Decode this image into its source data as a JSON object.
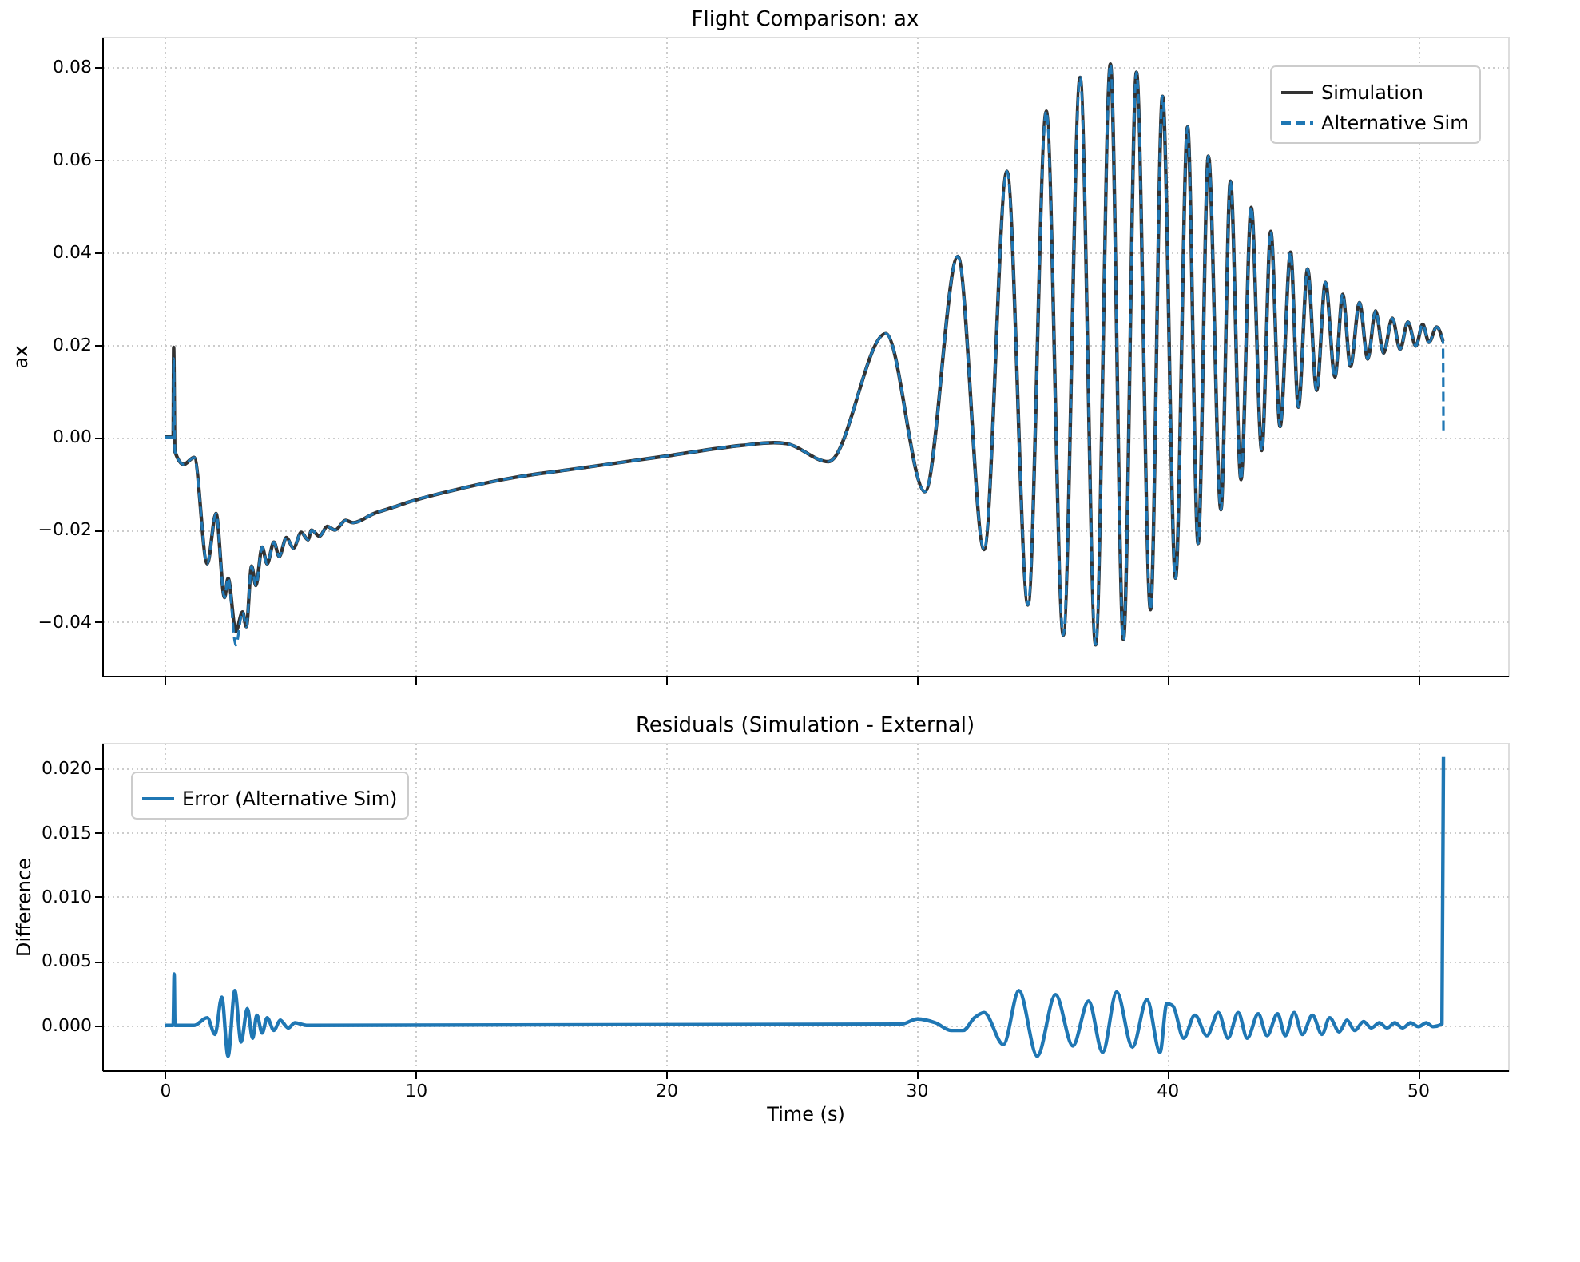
{
  "chart_data": [
    {
      "type": "line",
      "title": "Flight Comparison: ax",
      "ylabel": "ax",
      "legend": "top right",
      "grid": true,
      "marker": "none",
      "tick_labels": "y",
      "xlim": [
        -2.5,
        53.6
      ],
      "xticks": [
        0,
        10,
        20,
        30,
        40,
        50
      ],
      "ylim": [
        -0.0516,
        0.0866
      ],
      "yticks": [
        {
          "value": -0.04,
          "label": "−0.04"
        },
        {
          "value": -0.02,
          "label": "−0.02"
        },
        {
          "value": 0,
          "label": "0.00"
        },
        0.02,
        0.04,
        0.06,
        0.08
      ],
      "series": [
        {
          "name": "Simulation",
          "color": "#333333",
          "line_style": "solid",
          "x": [
            0,
            0.33,
            0.35,
            0.4,
            0.75,
            1.17,
            1.69,
            2.04,
            2.38,
            2.52,
            2.83,
            3.1,
            3.25,
            3.46,
            3.63,
            3.88,
            4.08,
            4.35,
            4.56,
            4.85,
            5.13,
            5.44,
            5.71,
            5.85,
            6.17,
            6.48,
            6.79,
            7.21,
            7.52,
            8.35,
            8.98,
            9.81,
            11.9,
            13.98,
            16.06,
            20,
            23,
            24.3,
            24.8,
            26.48,
            28.77,
            30.33,
            31.64,
            32.69,
            33.6,
            34.44,
            35.17,
            35.85,
            36.52,
            37.14,
            37.73,
            38.25,
            38.77,
            39.33,
            39.81,
            40.33,
            40.81,
            41.23,
            41.64,
            42.14,
            42.52,
            42.94,
            43.35,
            43.77,
            44.13,
            44.5,
            44.92,
            45.23,
            45.6,
            45.96,
            46.31,
            46.69,
            47.0,
            47.31,
            47.67,
            48.0,
            48.31,
            48.63,
            48.98,
            49.29,
            49.6,
            49.92,
            50.19,
            50.44,
            50.75,
            51.0
          ],
          "values": [
            0,
            0,
            0.0194,
            -0.0031,
            -0.0059,
            -0.0044,
            -0.0274,
            -0.0165,
            -0.0347,
            -0.0305,
            -0.042,
            -0.0378,
            -0.041,
            -0.0279,
            -0.0321,
            -0.0238,
            -0.0274,
            -0.0227,
            -0.0258,
            -0.0217,
            -0.024,
            -0.0206,
            -0.0222,
            -0.0201,
            -0.0214,
            -0.0193,
            -0.0201,
            -0.018,
            -0.0185,
            -0.0165,
            -0.0154,
            -0.0139,
            -0.011,
            -0.0087,
            -0.0071,
            -0.0041,
            -0.0018,
            -0.0012,
            -0.0014,
            -0.0053,
            0.0224,
            -0.0118,
            0.0391,
            -0.0243,
            0.0575,
            -0.0363,
            0.0705,
            -0.0428,
            0.0778,
            -0.0449,
            0.0807,
            -0.0438,
            0.0789,
            -0.0373,
            0.0737,
            -0.0305,
            0.0671,
            -0.023,
            0.0608,
            -0.0157,
            0.0554,
            -0.0092,
            0.0497,
            -0.0029,
            0.0445,
            0.0023,
            0.04,
            0.0065,
            0.0364,
            0.0101,
            0.0335,
            0.013,
            0.0309,
            0.0153,
            0.0291,
            0.0169,
            0.0273,
            0.0182,
            0.0257,
            0.019,
            0.0249,
            0.0197,
            0.0244,
            0.0205,
            0.0238,
            0.0207
          ]
        },
        {
          "name": "Alternative Sim",
          "color": "#1f77b4",
          "line_style": "dashed",
          "x": [
            0,
            0.33,
            0.35,
            0.4,
            0.75,
            1.17,
            1.69,
            2.04,
            2.38,
            2.52,
            2.83,
            3.1,
            3.25,
            3.46,
            3.63,
            3.88,
            4.08,
            4.35,
            4.56,
            4.85,
            5.13,
            5.44,
            5.71,
            5.85,
            6.17,
            6.48,
            6.79,
            7.21,
            7.52,
            8.35,
            8.98,
            9.81,
            11.9,
            13.98,
            16.06,
            20,
            23,
            24.3,
            24.8,
            26.48,
            28.77,
            30.33,
            31.64,
            32.69,
            33.6,
            34.44,
            35.17,
            35.85,
            36.52,
            37.14,
            37.73,
            38.25,
            38.77,
            39.33,
            39.81,
            40.33,
            40.81,
            41.23,
            41.64,
            42.14,
            42.52,
            42.94,
            43.35,
            43.77,
            44.13,
            44.5,
            44.92,
            45.23,
            45.6,
            45.96,
            46.31,
            46.69,
            47.0,
            47.31,
            47.67,
            48.0,
            48.31,
            48.63,
            48.98,
            49.29,
            49.6,
            49.92,
            50.19,
            50.44,
            50.75,
            51.0,
            51.02
          ],
          "values": [
            0,
            0,
            0.017,
            -0.0031,
            -0.0059,
            -0.0044,
            -0.0274,
            -0.0165,
            -0.0347,
            -0.0305,
            -0.045,
            -0.0378,
            -0.041,
            -0.0279,
            -0.0321,
            -0.0238,
            -0.0274,
            -0.0227,
            -0.0258,
            -0.0217,
            -0.024,
            -0.0206,
            -0.0222,
            -0.0201,
            -0.0214,
            -0.0193,
            -0.0201,
            -0.018,
            -0.0185,
            -0.0165,
            -0.0154,
            -0.0139,
            -0.011,
            -0.0087,
            -0.0071,
            -0.0041,
            -0.0018,
            -0.0012,
            -0.0014,
            -0.0053,
            0.0224,
            -0.0118,
            0.0391,
            -0.0243,
            0.0575,
            -0.0363,
            0.0705,
            -0.0428,
            0.0778,
            -0.0449,
            0.0807,
            -0.0438,
            0.0789,
            -0.0373,
            0.0737,
            -0.0305,
            0.0671,
            -0.023,
            0.0608,
            -0.0157,
            0.0554,
            -0.0092,
            0.0497,
            -0.0029,
            0.0445,
            0.0023,
            0.04,
            0.0065,
            0.0364,
            0.0101,
            0.0335,
            0.013,
            0.0309,
            0.0153,
            0.0291,
            0.0169,
            0.0273,
            0.0182,
            0.0257,
            0.019,
            0.0249,
            0.0197,
            0.0244,
            0.0205,
            0.0238,
            0.0207,
            0.001
          ]
        }
      ]
    },
    {
      "type": "line",
      "title": "Residuals (Simulation - External)",
      "xlabel": "Time (s)",
      "ylabel": "Difference",
      "legend": "top left",
      "grid": true,
      "marker": "none",
      "xlim": [
        -2.5,
        53.6
      ],
      "xticks": [
        0,
        10,
        20,
        30,
        40,
        50
      ],
      "ylim": [
        -0.0035,
        0.022
      ],
      "yticks": [
        {
          "value": 0,
          "label": "0.000"
        },
        {
          "value": 0.005,
          "label": "0.005"
        },
        {
          "value": 0.01,
          "label": "0.010"
        },
        {
          "value": 0.015,
          "label": "0.015"
        },
        {
          "value": 0.02,
          "label": "0.020"
        }
      ],
      "series": [
        {
          "name": "Error (Alternative Sim)",
          "color": "#1f77b4",
          "line_style": "solid",
          "x": [
            0,
            0.33,
            0.37,
            0.4,
            1.17,
            1.69,
            2.0,
            2.27,
            2.52,
            2.79,
            3.04,
            3.29,
            3.5,
            3.67,
            3.88,
            4.08,
            4.35,
            4.6,
            4.92,
            5.19,
            5.65,
            29.4,
            30.02,
            30.75,
            31.38,
            31.85,
            32.31,
            32.69,
            33.46,
            34.08,
            34.81,
            35.54,
            36.23,
            36.86,
            37.42,
            37.98,
            38.61,
            39.19,
            39.71,
            39.98,
            40.23,
            40.65,
            41.1,
            41.58,
            42.04,
            42.42,
            42.83,
            43.19,
            43.63,
            43.98,
            44.4,
            44.71,
            45.06,
            45.39,
            45.79,
            46.17,
            46.48,
            46.86,
            47.17,
            47.48,
            47.83,
            48.14,
            48.46,
            48.77,
            49.08,
            49.39,
            49.71,
            50.02,
            50.33,
            50.6,
            50.96,
            51.02
          ],
          "values": [
            0,
            0,
            0.004,
            0,
            0,
            0.0006,
            -0.0007,
            0.0022,
            -0.0024,
            0.0027,
            -0.0013,
            0.0013,
            -0.001,
            0.0008,
            -0.0006,
            0.0006,
            -0.0004,
            0.0004,
            -0.0002,
            0.0002,
            0,
            0.0001,
            0.0005,
            0.0002,
            -0.0004,
            -0.0004,
            0.0006,
            0.001,
            -0.0015,
            0.0027,
            -0.0024,
            0.0024,
            -0.0016,
            0.0019,
            -0.0021,
            0.0026,
            -0.0017,
            0.002,
            -0.0021,
            0.0017,
            0.0015,
            -0.001,
            0.0008,
            -0.0008,
            0.001,
            -0.001,
            0.001,
            -0.001,
            0.0009,
            -0.0008,
            0.0009,
            -0.0008,
            0.001,
            -0.0007,
            0.0008,
            -0.0007,
            0.0006,
            -0.0005,
            0.0004,
            -0.0004,
            0.0003,
            -0.0002,
            0.0002,
            -0.0002,
            0.0002,
            -0.0002,
            0.0002,
            -0.0001,
            0.0002,
            -0.0001,
            0.0001,
            0.0209
          ]
        }
      ]
    }
  ]
}
